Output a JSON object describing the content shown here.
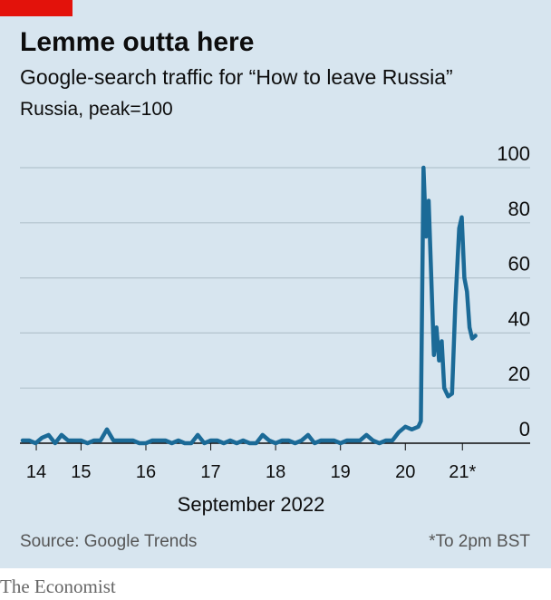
{
  "chart_data": {
    "type": "line",
    "title": "Lemme outta here",
    "subtitle": "Google-search traffic for “How to leave Russia”",
    "note": "Russia, peak=100",
    "x_label": "September 2022",
    "source": "Source: Google Trends",
    "footnote": "*To 2pm BST",
    "brand": "The Economist",
    "x": [
      14.6,
      14.7,
      14.8,
      14.9,
      15.0,
      15.1,
      15.2,
      15.3,
      15.4,
      15.5,
      15.6,
      15.7,
      15.8,
      15.9,
      16.0,
      16.1,
      16.2,
      16.3,
      16.4,
      16.5,
      16.6,
      16.7,
      16.8,
      16.9,
      17.0,
      17.1,
      17.2,
      17.3,
      17.4,
      17.5,
      17.6,
      17.7,
      17.8,
      17.9,
      18.0,
      18.1,
      18.2,
      18.3,
      18.4,
      18.5,
      18.6,
      18.7,
      18.8,
      18.9,
      19.0,
      19.1,
      19.2,
      19.3,
      19.4,
      19.5,
      19.6,
      19.7,
      19.8,
      19.9,
      20.0,
      20.1,
      20.2,
      20.3,
      20.4,
      20.5,
      20.6,
      20.7,
      20.74,
      20.78,
      20.82,
      20.86,
      20.9,
      20.94,
      20.98,
      21.02,
      21.06,
      21.1,
      21.16,
      21.22,
      21.27,
      21.33,
      21.37,
      21.41,
      21.45,
      21.49,
      21.53,
      21.58
    ],
    "series": [
      {
        "name": "Russia",
        "color": "#1b6a97",
        "values": [
          1,
          1,
          0,
          2,
          3,
          0,
          3,
          1,
          1,
          1,
          0,
          1,
          1,
          5,
          1,
          1,
          1,
          1,
          0,
          0,
          1,
          1,
          1,
          0,
          1,
          0,
          0,
          3,
          0,
          1,
          1,
          0,
          1,
          0,
          1,
          0,
          0,
          3,
          1,
          0,
          1,
          1,
          0,
          1,
          3,
          0,
          1,
          1,
          1,
          0,
          1,
          1,
          1,
          3,
          1,
          0,
          1,
          1,
          4,
          6,
          5,
          6,
          8,
          100,
          75,
          88,
          60,
          32,
          42,
          30,
          37,
          20,
          17,
          18,
          50,
          78,
          82,
          60,
          55,
          42,
          38,
          39
        ]
      }
    ],
    "xlim": [
      14.6,
      21.6
    ],
    "xticks": [
      {
        "value": 14.81,
        "label": "14"
      },
      {
        "value": 15.5,
        "label": "15"
      },
      {
        "value": 16.5,
        "label": "16"
      },
      {
        "value": 17.5,
        "label": "17"
      },
      {
        "value": 18.5,
        "label": "18"
      },
      {
        "value": 19.5,
        "label": "19"
      },
      {
        "value": 20.5,
        "label": "20"
      },
      {
        "value": 21.38,
        "label": "21*"
      }
    ],
    "ylim": [
      0,
      100
    ],
    "yticks": [
      0,
      20,
      40,
      60,
      80,
      100
    ],
    "grid": true
  }
}
